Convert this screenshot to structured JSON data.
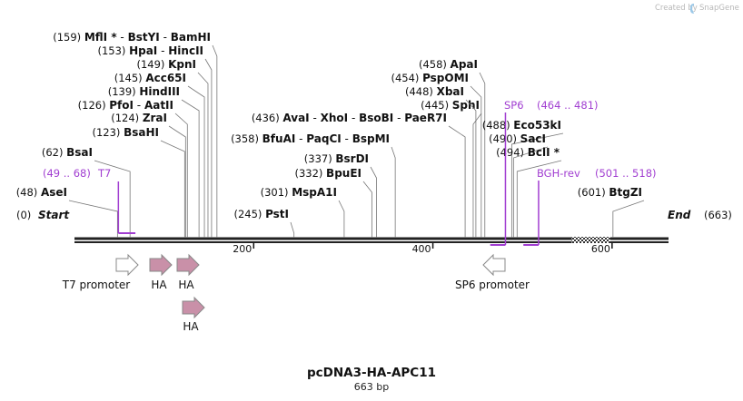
{
  "credit": "Created by",
  "brand": "SnapGene",
  "title": "pcDNA3-HA-APC11",
  "length_label": "663 bp",
  "total_bp": 663,
  "ends": {
    "start_pos": "(0)",
    "start_label": "Start",
    "end_label": "End",
    "end_pos": "(663)"
  },
  "ticks": [
    {
      "bp": 200,
      "label": "200"
    },
    {
      "bp": 400,
      "label": "400"
    },
    {
      "bp": 600,
      "label": "600"
    }
  ],
  "sites": [
    {
      "bp": 48,
      "pos": "(48)",
      "names": [
        "AseI"
      ]
    },
    {
      "bp": 62,
      "pos": "(62)",
      "names": [
        "BsaI"
      ]
    },
    {
      "bp": 123,
      "pos": "(123)",
      "names": [
        "BsaHI"
      ]
    },
    {
      "bp": 124,
      "pos": "(124)",
      "names": [
        "ZraI"
      ]
    },
    {
      "bp": 126,
      "pos": "(126)",
      "names": [
        "PfoI",
        "AatII"
      ]
    },
    {
      "bp": 139,
      "pos": "(139)",
      "names": [
        "HindIII"
      ]
    },
    {
      "bp": 145,
      "pos": "(145)",
      "names": [
        "Acc65I"
      ]
    },
    {
      "bp": 149,
      "pos": "(149)",
      "names": [
        "KpnI"
      ]
    },
    {
      "bp": 153,
      "pos": "(153)",
      "names": [
        "HpaI",
        "HincII"
      ]
    },
    {
      "bp": 159,
      "pos": "(159)",
      "names": [
        "MflI *",
        "BstYI",
        "BamHI"
      ]
    },
    {
      "bp": 245,
      "pos": "(245)",
      "names": [
        "PstI"
      ]
    },
    {
      "bp": 301,
      "pos": "(301)",
      "names": [
        "MspA1I"
      ]
    },
    {
      "bp": 332,
      "pos": "(332)",
      "names": [
        "BpuEI"
      ]
    },
    {
      "bp": 337,
      "pos": "(337)",
      "names": [
        "BsrDI"
      ]
    },
    {
      "bp": 358,
      "pos": "(358)",
      "names": [
        "BfuAI",
        "PaqCI",
        "BspMI"
      ]
    },
    {
      "bp": 436,
      "pos": "(436)",
      "names": [
        "AvaI",
        "XhoI",
        "BsoBI",
        "PaeR7I"
      ]
    },
    {
      "bp": 445,
      "pos": "(445)",
      "names": [
        "SphI"
      ]
    },
    {
      "bp": 448,
      "pos": "(448)",
      "names": [
        "XbaI"
      ]
    },
    {
      "bp": 454,
      "pos": "(454)",
      "names": [
        "PspOMI"
      ]
    },
    {
      "bp": 458,
      "pos": "(458)",
      "names": [
        "ApaI"
      ]
    },
    {
      "bp": 488,
      "pos": "(488)",
      "names": [
        "Eco53kI"
      ]
    },
    {
      "bp": 490,
      "pos": "(490)",
      "names": [
        "SacI"
      ]
    },
    {
      "bp": 494,
      "pos": "(494)",
      "names": [
        "BclI *"
      ]
    },
    {
      "bp": 601,
      "pos": "(601)",
      "names": [
        "BtgZI"
      ]
    }
  ],
  "primers": [
    {
      "name": "T7",
      "range": "(49 .. 68)",
      "from": 49,
      "to": 68,
      "strand": "forward"
    },
    {
      "name": "SP6",
      "range": "(464 .. 481)",
      "from": 464,
      "to": 481,
      "strand": "reverse"
    },
    {
      "name": "BGH-rev",
      "range": "(501 .. 518)",
      "from": 501,
      "to": 518,
      "strand": "reverse"
    }
  ],
  "features": [
    {
      "name": "T7 promoter",
      "from": 48,
      "to": 66,
      "direction": "forward",
      "color": "#ffffff"
    },
    {
      "name": "HA",
      "from": 82,
      "to": 108,
      "direction": "forward",
      "color": "#c990a8"
    },
    {
      "name": "HA",
      "from": 112,
      "to": 138,
      "direction": "forward",
      "color": "#c990a8"
    },
    {
      "name": "HA",
      "from": 118,
      "to": 144,
      "direction": "forward",
      "color": "#c990a8"
    },
    {
      "name": "SP6 promoter",
      "from": 464,
      "to": 482,
      "direction": "reverse",
      "color": "#ffffff"
    }
  ],
  "hatched_region": {
    "from": 555,
    "to": 598
  },
  "colors": {
    "primer": "#a13ed1",
    "feature_outline": "#888888",
    "backbone": "#222222"
  }
}
